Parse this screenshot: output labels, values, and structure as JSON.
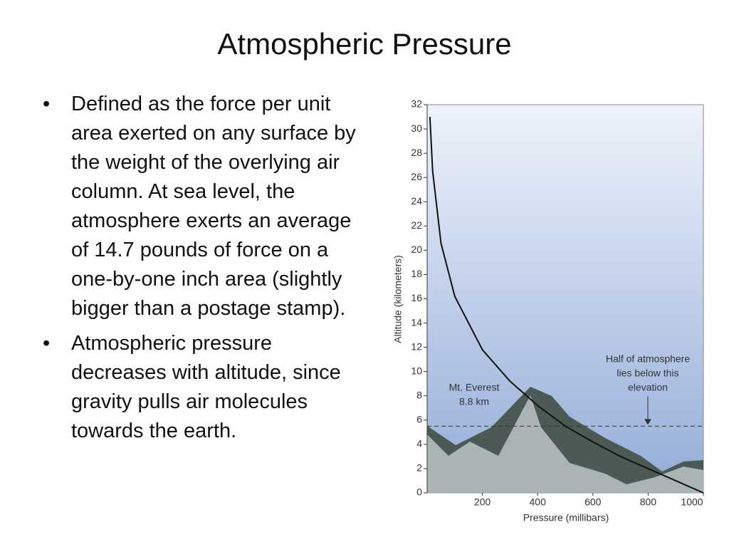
{
  "slide": {
    "title": "Atmospheric Pressure",
    "bullets": [
      "Defined as the force per unit area exerted on any surface by the weight of the overlying air column. At sea level, the atmosphere exerts an average of 14.7 pounds of force on a one-by-one inch area (slightly bigger than a postage stamp).",
      "Atmospheric pressure decreases with altitude, since gravity pulls air molecules towards the earth."
    ]
  },
  "chart_data": {
    "type": "line",
    "x_label": "Pressure (millibars)",
    "y_label": "Altitude (kilometers)",
    "x": [
      1000,
      900,
      800,
      700,
      600,
      500,
      400,
      300,
      200,
      100,
      50,
      20,
      10
    ],
    "series": [
      {
        "color": "#111111",
        "values": [
          0,
          1,
          2,
          3,
          4.2,
          5.5,
          7.2,
          9.2,
          11.8,
          16.2,
          20.6,
          26.5,
          31
        ]
      }
    ],
    "xlim": [
      0,
      1000
    ],
    "xticks": [
      200,
      400,
      600,
      800,
      1000
    ],
    "ylim": [
      0,
      32
    ],
    "yticks": [
      0,
      2,
      4,
      6,
      8,
      10,
      12,
      14,
      16,
      18,
      20,
      22,
      24,
      26,
      28,
      30,
      32
    ],
    "hline": 5.5,
    "annotations": [
      [
        "Mt. Everest",
        "8.8 km"
      ],
      [
        "Half of atmosphere",
        "lies below this",
        "elevation"
      ]
    ]
  }
}
